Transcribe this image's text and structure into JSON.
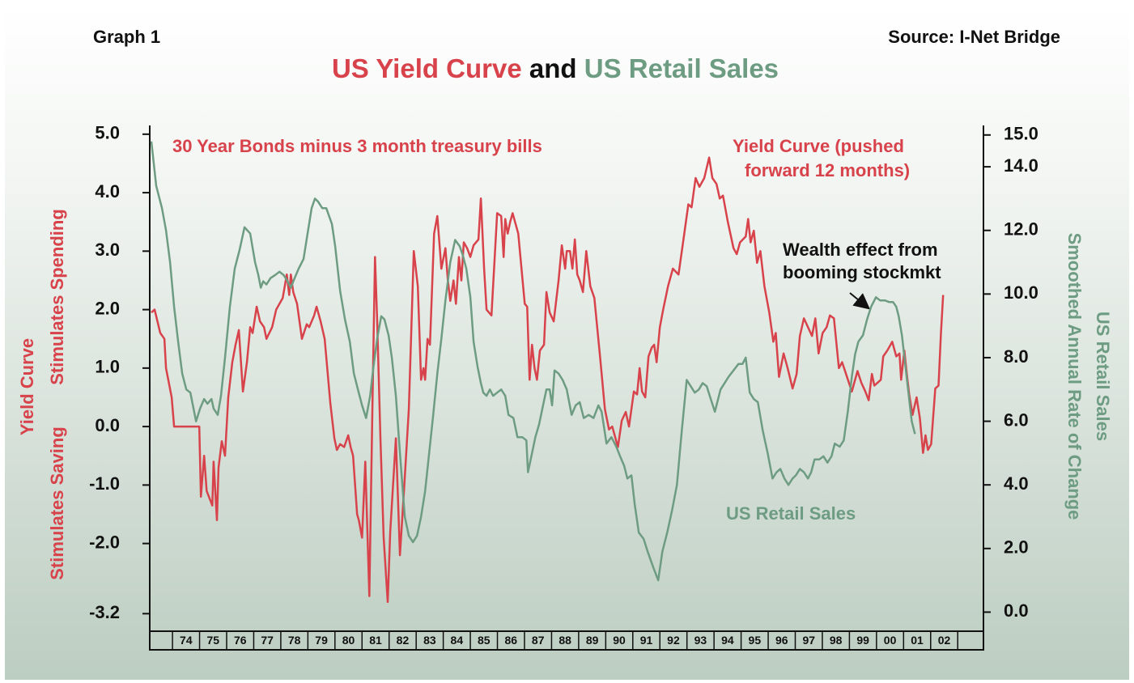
{
  "chart_data": {
    "type": "line",
    "graph_label": "Graph 1",
    "source": "Source: I-Net Bridge",
    "title": [
      "US Yield Curve",
      "and",
      "US Retail Sales"
    ],
    "subtitle": "30 Year Bonds minus 3 month treasury bills",
    "y_label": [
      "Yield Curve",
      "Stimulates Spending",
      "Stimulates Saving"
    ],
    "y2_label": [
      "US Retail Sales",
      "Smoothed Annual Rate of Change"
    ],
    "annotation": [
      "Wealth effect from",
      "booming stockmkt"
    ],
    "xlim": [
      1973.16,
      2003.95
    ],
    "xticks": [
      {
        "value": 1974,
        "label": "74"
      },
      {
        "value": 1975,
        "label": "75"
      },
      {
        "value": 1976,
        "label": "76"
      },
      {
        "value": 1977,
        "label": "77"
      },
      {
        "value": 1978,
        "label": "78"
      },
      {
        "value": 1979,
        "label": "79"
      },
      {
        "value": 1980,
        "label": "80"
      },
      {
        "value": 1981,
        "label": "81"
      },
      {
        "value": 1982,
        "label": "82"
      },
      {
        "value": 1983,
        "label": "83"
      },
      {
        "value": 1984,
        "label": "84"
      },
      {
        "value": 1985,
        "label": "85"
      },
      {
        "value": 1986,
        "label": "86"
      },
      {
        "value": 1987,
        "label": "87"
      },
      {
        "value": 1988,
        "label": "88"
      },
      {
        "value": 1989,
        "label": "89"
      },
      {
        "value": 1990,
        "label": "90"
      },
      {
        "value": 1991,
        "label": "91"
      },
      {
        "value": 1992,
        "label": "92"
      },
      {
        "value": 1993,
        "label": "93"
      },
      {
        "value": 1994,
        "label": "94"
      },
      {
        "value": 1995,
        "label": "95"
      },
      {
        "value": 1996,
        "label": "96"
      },
      {
        "value": 1997,
        "label": "97"
      },
      {
        "value": 1998,
        "label": "98"
      },
      {
        "value": 1999,
        "label": "99"
      },
      {
        "value": 2000,
        "label": "00"
      },
      {
        "value": 2001,
        "label": "01"
      },
      {
        "value": 2002,
        "label": "02"
      },
      {
        "value": 2003,
        "label": ""
      }
    ],
    "ylim": [
      -3.5,
      5.15
    ],
    "yticks": [
      {
        "value": 5,
        "label": "5.0"
      },
      {
        "value": 4,
        "label": "4.0"
      },
      {
        "value": 3,
        "label": "3.0"
      },
      {
        "value": 2,
        "label": "2.0"
      },
      {
        "value": 1,
        "label": "1.0"
      },
      {
        "value": 0,
        "label": "0.0"
      },
      {
        "value": -1,
        "label": "-1.0"
      },
      {
        "value": -2,
        "label": "-2.0"
      },
      -3.2
    ],
    "y2lim": [
      -0.6,
      15.3
    ],
    "y2ticks": [
      {
        "value": 15,
        "label": "15.0"
      },
      {
        "value": 14,
        "label": "14.0"
      },
      {
        "value": 12,
        "label": "12.0"
      },
      {
        "value": 10,
        "label": "10.0"
      },
      {
        "value": 8,
        "label": "8.0"
      },
      {
        "value": 6,
        "label": "6.0"
      },
      {
        "value": 4,
        "label": "4.0"
      },
      {
        "value": 2,
        "label": "2.0"
      },
      {
        "value": 0,
        "label": "0.0"
      }
    ],
    "series": [
      {
        "name": [
          "Yield Curve (pushed",
          "forward 12 months)"
        ],
        "color": "#d8424b",
        "axis": "y",
        "x": [
          1973.22,
          1973.34,
          1973.55,
          1973.7,
          1973.76,
          1973.97,
          1974.06,
          1974.99,
          1975.05,
          1975.17,
          1975.26,
          1975.47,
          1975.52,
          1975.64,
          1975.7,
          1975.82,
          1975.94,
          1976.06,
          1976.21,
          1976.33,
          1976.45,
          1976.6,
          1976.75,
          1976.87,
          1976.96,
          1977.11,
          1977.23,
          1977.38,
          1977.47,
          1977.68,
          1977.83,
          1978.07,
          1978.22,
          1978.31,
          1978.37,
          1978.46,
          1978.6,
          1978.78,
          1978.96,
          1979.05,
          1979.23,
          1979.32,
          1979.47,
          1979.62,
          1979.83,
          1979.98,
          1980.07,
          1980.19,
          1980.34,
          1980.49,
          1980.58,
          1980.67,
          1980.82,
          1980.88,
          1981.0,
          1981.12,
          1981.27,
          1981.39,
          1981.48,
          1981.56,
          1981.68,
          1981.8,
          1981.95,
          1982.04,
          1982.25,
          1982.4,
          1982.55,
          1982.73,
          1982.91,
          1983.06,
          1983.18,
          1983.27,
          1983.33,
          1983.42,
          1983.51,
          1983.66,
          1983.78,
          1983.93,
          1984.08,
          1984.17,
          1984.26,
          1984.38,
          1984.47,
          1984.58,
          1984.67,
          1984.76,
          1984.88,
          1985.0,
          1985.12,
          1985.3,
          1985.39,
          1985.51,
          1985.6,
          1985.78,
          1985.99,
          1986.14,
          1986.23,
          1986.29,
          1986.38,
          1986.47,
          1986.56,
          1986.77,
          1987.01,
          1987.1,
          1987.19,
          1987.28,
          1987.37,
          1987.46,
          1987.57,
          1987.72,
          1987.81,
          1987.93,
          1988.08,
          1988.26,
          1988.38,
          1988.5,
          1988.56,
          1988.68,
          1988.77,
          1988.86,
          1988.95,
          1989.04,
          1989.16,
          1989.28,
          1989.43,
          1989.58,
          1989.79,
          1989.97,
          1990.12,
          1990.24,
          1990.45,
          1990.59,
          1990.74,
          1990.86,
          1991.04,
          1991.16,
          1991.25,
          1991.34,
          1991.46,
          1991.58,
          1991.7,
          1991.79,
          1991.88,
          1992.0,
          1992.12,
          1992.3,
          1992.48,
          1992.69,
          1992.9,
          1993.05,
          1993.17,
          1993.32,
          1993.46,
          1993.64,
          1993.82,
          1993.94,
          1994.09,
          1994.21,
          1994.33,
          1994.51,
          1994.72,
          1994.84,
          1994.96,
          1995.17,
          1995.26,
          1995.35,
          1995.47,
          1995.59,
          1995.71,
          1995.86,
          1996.04,
          1996.19,
          1996.28,
          1996.4,
          1996.57,
          1996.72,
          1996.9,
          1997.05,
          1997.17,
          1997.32,
          1997.47,
          1997.62,
          1997.74,
          1997.86,
          1998.01,
          1998.16,
          1998.28,
          1998.43,
          1998.61,
          1998.73,
          1998.91,
          1999.09,
          1999.3,
          1999.44,
          1999.59,
          1999.71,
          1999.83,
          1999.92,
          2000.04,
          2000.16,
          2000.25,
          2000.4,
          2000.58,
          2000.73,
          2000.85,
          2000.91,
          2001.03,
          2001.12,
          2001.21,
          2001.33,
          2001.48,
          2001.6,
          2001.72,
          2001.81,
          2001.9,
          2002.02,
          2002.17,
          2002.29,
          2002.38,
          2002.46
        ],
        "values": [
          1.95,
          2.0,
          1.6,
          1.5,
          1.0,
          0.5,
          0.0,
          0.0,
          -1.2,
          -0.5,
          -1.1,
          -1.35,
          -0.6,
          -1.6,
          -0.7,
          -0.25,
          -0.5,
          0.5,
          1.1,
          1.4,
          1.65,
          0.6,
          1.1,
          1.7,
          1.6,
          2.05,
          1.8,
          1.7,
          1.5,
          1.7,
          2.0,
          2.2,
          2.6,
          2.25,
          2.6,
          2.3,
          2.1,
          1.5,
          1.75,
          1.7,
          1.9,
          2.05,
          1.8,
          1.5,
          0.4,
          -0.2,
          -0.4,
          -0.3,
          -0.35,
          -0.15,
          -0.35,
          -0.5,
          -1.5,
          -1.6,
          -1.9,
          -0.6,
          -2.9,
          0.5,
          2.9,
          1.8,
          -0.2,
          -1.9,
          -3.0,
          -1.8,
          -0.2,
          -2.2,
          -1.1,
          0.3,
          3.0,
          2.4,
          0.8,
          1.0,
          0.8,
          1.5,
          1.4,
          3.3,
          3.6,
          2.7,
          3.05,
          2.5,
          2.15,
          2.5,
          2.1,
          2.9,
          2.5,
          3.15,
          3.05,
          2.9,
          3.1,
          3.2,
          3.9,
          2.7,
          2.0,
          1.9,
          3.65,
          3.6,
          2.9,
          3.55,
          3.3,
          3.5,
          3.65,
          3.3,
          2.1,
          2.05,
          0.8,
          1.4,
          1.0,
          0.8,
          1.3,
          1.4,
          2.3,
          1.95,
          1.8,
          2.5,
          3.1,
          2.7,
          3.0,
          3.0,
          2.7,
          3.2,
          2.6,
          2.5,
          2.3,
          3.0,
          2.4,
          2.2,
          1.2,
          0.3,
          -0.05,
          0.0,
          -0.35,
          0.1,
          0.25,
          0.0,
          0.6,
          0.55,
          1.0,
          0.6,
          0.5,
          1.2,
          1.35,
          1.4,
          1.1,
          1.7,
          2.0,
          2.4,
          2.7,
          2.6,
          3.3,
          3.8,
          3.75,
          4.25,
          4.1,
          4.25,
          4.6,
          4.25,
          4.15,
          3.9,
          3.95,
          3.5,
          3.05,
          2.95,
          3.15,
          3.25,
          3.55,
          3.15,
          3.35,
          2.8,
          3.0,
          2.4,
          1.95,
          1.45,
          1.6,
          0.85,
          1.25,
          1.0,
          0.65,
          0.9,
          1.55,
          1.85,
          1.7,
          1.55,
          1.85,
          1.25,
          1.6,
          1.7,
          1.9,
          1.85,
          1.0,
          1.1,
          0.85,
          0.6,
          0.95,
          0.75,
          0.6,
          0.45,
          0.9,
          0.7,
          0.75,
          0.8,
          1.2,
          1.3,
          1.45,
          1.2,
          1.25,
          0.8,
          1.3,
          0.9,
          0.55,
          0.2,
          0.5,
          0.15,
          -0.45,
          -0.15,
          -0.4,
          -0.3,
          0.65,
          0.7,
          1.6,
          2.25
        ]
      },
      {
        "name": "US Retail Sales",
        "color": "#6d9c82",
        "axis": "y2",
        "x": [
          1973.22,
          1973.4,
          1973.61,
          1973.76,
          1973.91,
          1974.06,
          1974.21,
          1974.36,
          1974.51,
          1974.66,
          1974.87,
          1975.02,
          1975.17,
          1975.29,
          1975.44,
          1975.52,
          1975.67,
          1975.79,
          1975.94,
          1976.12,
          1976.3,
          1976.48,
          1976.66,
          1976.87,
          1977.05,
          1977.17,
          1977.26,
          1977.35,
          1977.47,
          1977.62,
          1977.8,
          1977.95,
          1978.1,
          1978.25,
          1978.37,
          1978.51,
          1978.66,
          1978.84,
          1978.99,
          1979.14,
          1979.26,
          1979.38,
          1979.53,
          1979.68,
          1979.89,
          1980.01,
          1980.19,
          1980.37,
          1980.55,
          1980.7,
          1980.85,
          1981.0,
          1981.15,
          1981.3,
          1981.42,
          1981.56,
          1981.71,
          1981.83,
          1981.98,
          1982.1,
          1982.25,
          1982.4,
          1982.58,
          1982.73,
          1982.88,
          1983.03,
          1983.18,
          1983.33,
          1983.48,
          1983.63,
          1983.78,
          1983.93,
          1984.08,
          1984.26,
          1984.44,
          1984.61,
          1984.73,
          1984.85,
          1985.0,
          1985.12,
          1985.27,
          1985.39,
          1985.48,
          1985.6,
          1985.72,
          1985.84,
          1985.99,
          1986.14,
          1986.29,
          1986.41,
          1986.59,
          1986.74,
          1986.92,
          1987.07,
          1987.13,
          1987.28,
          1987.4,
          1987.54,
          1987.66,
          1987.81,
          1987.93,
          1988.02,
          1988.11,
          1988.26,
          1988.41,
          1988.56,
          1988.74,
          1988.89,
          1989.04,
          1989.19,
          1989.37,
          1989.55,
          1989.73,
          1989.85,
          1990.03,
          1990.21,
          1990.39,
          1990.53,
          1990.68,
          1990.8,
          1990.95,
          1991.07,
          1991.22,
          1991.4,
          1991.55,
          1991.76,
          1991.94,
          1992.09,
          1992.27,
          1992.45,
          1992.63,
          1992.81,
          1992.99,
          1993.14,
          1993.29,
          1993.44,
          1993.58,
          1993.73,
          1993.88,
          1994.03,
          1994.24,
          1994.39,
          1994.54,
          1994.72,
          1994.9,
          1995.05,
          1995.17,
          1995.32,
          1995.47,
          1995.62,
          1995.8,
          1995.98,
          1996.16,
          1996.31,
          1996.45,
          1996.6,
          1996.75,
          1996.9,
          1997.02,
          1997.17,
          1997.32,
          1997.47,
          1997.59,
          1997.71,
          1997.89,
          1998.04,
          1998.19,
          1998.34,
          1998.46,
          1998.64,
          1998.79,
          1998.94,
          1999.09,
          1999.21,
          1999.33,
          1999.5,
          1999.65,
          1999.8,
          1999.98,
          2000.13,
          2000.31,
          2000.46,
          2000.61,
          2000.73,
          2000.82,
          2000.94,
          2001.06,
          2001.18,
          2001.3,
          2001.42
        ],
        "values": [
          14.8,
          13.4,
          12.7,
          12.0,
          11.0,
          9.6,
          8.5,
          7.5,
          7.0,
          6.9,
          6.0,
          6.4,
          6.7,
          6.55,
          6.7,
          6.4,
          6.2,
          6.8,
          8.0,
          9.6,
          10.8,
          11.4,
          12.1,
          11.9,
          11.0,
          10.6,
          10.2,
          10.4,
          10.3,
          10.5,
          10.6,
          10.7,
          10.6,
          10.4,
          10.2,
          10.5,
          10.8,
          11.1,
          11.9,
          12.7,
          13.0,
          12.9,
          12.7,
          12.7,
          12.2,
          11.5,
          10.1,
          9.2,
          8.5,
          7.5,
          7.0,
          6.5,
          6.1,
          6.8,
          7.7,
          8.6,
          9.3,
          9.2,
          8.7,
          8.0,
          6.8,
          5.0,
          3.0,
          2.4,
          2.2,
          2.4,
          3.0,
          3.8,
          5.0,
          6.2,
          7.5,
          8.6,
          9.8,
          11.0,
          11.7,
          11.5,
          11.2,
          10.8,
          9.9,
          8.5,
          7.7,
          7.2,
          6.9,
          6.8,
          7.0,
          6.8,
          6.9,
          7.0,
          6.8,
          6.2,
          6.1,
          5.5,
          5.5,
          5.4,
          4.4,
          5.0,
          5.5,
          5.9,
          6.4,
          7.0,
          7.0,
          6.5,
          7.6,
          7.5,
          7.3,
          7.0,
          6.2,
          6.5,
          6.6,
          6.1,
          6.2,
          6.1,
          6.5,
          6.3,
          5.3,
          5.5,
          5.2,
          4.9,
          4.6,
          4.2,
          4.3,
          3.4,
          2.5,
          2.3,
          1.9,
          1.4,
          1.0,
          1.9,
          2.5,
          3.2,
          4.0,
          5.7,
          7.3,
          7.1,
          6.9,
          7.0,
          7.2,
          7.1,
          6.7,
          6.3,
          7.0,
          7.2,
          7.4,
          7.6,
          7.8,
          7.8,
          8.0,
          6.9,
          6.7,
          6.6,
          5.7,
          5.0,
          4.2,
          4.4,
          4.5,
          4.2,
          4.0,
          4.2,
          4.3,
          4.5,
          4.4,
          4.2,
          4.4,
          4.8,
          4.8,
          4.9,
          4.7,
          4.9,
          5.3,
          5.2,
          5.4,
          6.3,
          7.4,
          8.1,
          8.5,
          8.7,
          9.2,
          9.6,
          9.9,
          9.8,
          9.8,
          9.75,
          9.75,
          9.6,
          9.3,
          8.7,
          7.8,
          6.9,
          6.0,
          5.6
        ]
      }
    ]
  }
}
